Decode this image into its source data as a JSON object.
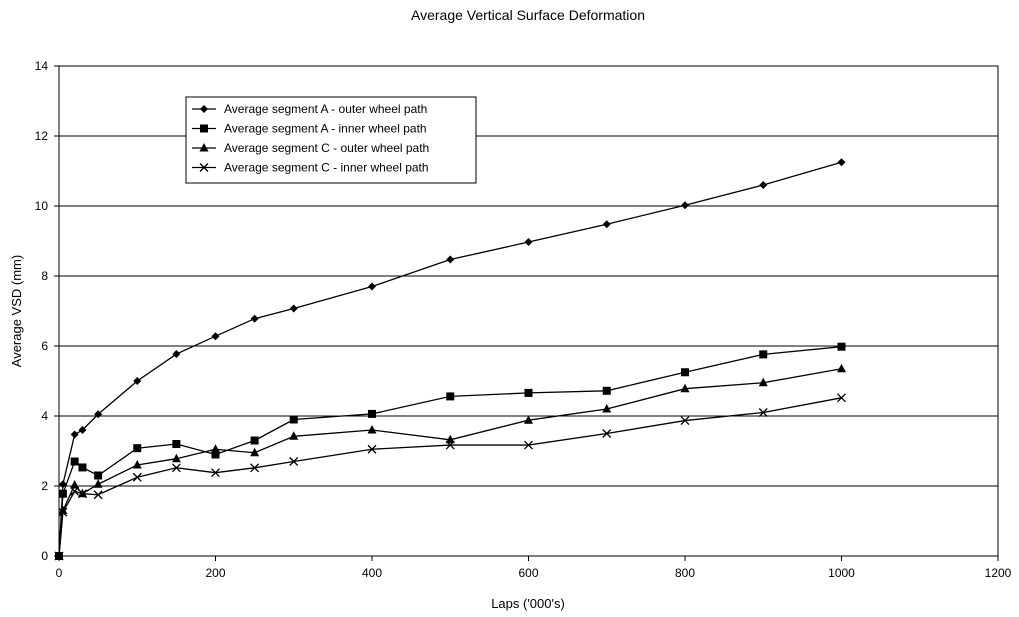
{
  "chart_data": {
    "type": "line",
    "title": "Average Vertical Surface Deformation",
    "xlabel": "Laps ('000's)",
    "ylabel": "Average VSD (mm)",
    "xlim": [
      0,
      1200
    ],
    "ylim": [
      0,
      14
    ],
    "x_ticks": [
      0,
      200,
      400,
      600,
      800,
      1000,
      1200
    ],
    "y_ticks": [
      0,
      2,
      4,
      6,
      8,
      10,
      12,
      14
    ],
    "grid": "horizontal",
    "legend_position": "top-left",
    "series": [
      {
        "name": "Average segment A - outer wheel path",
        "marker": "diamond",
        "color": "#000000",
        "x": [
          0,
          5,
          20,
          30,
          50,
          100,
          150,
          200,
          250,
          300,
          400,
          500,
          600,
          700,
          800,
          900,
          1000
        ],
        "y": [
          0,
          2.05,
          3.47,
          3.6,
          4.05,
          5.0,
          5.77,
          6.28,
          6.78,
          7.07,
          7.7,
          8.47,
          8.97,
          9.48,
          10.02,
          10.6,
          11.25
        ]
      },
      {
        "name": "Average segment A - inner wheel path",
        "marker": "square",
        "color": "#000000",
        "x": [
          0,
          5,
          20,
          30,
          50,
          100,
          150,
          200,
          250,
          300,
          400,
          500,
          600,
          700,
          800,
          900,
          1000
        ],
        "y": [
          0,
          1.78,
          2.7,
          2.53,
          2.3,
          3.08,
          3.2,
          2.9,
          3.3,
          3.9,
          4.06,
          4.56,
          4.66,
          4.72,
          5.25,
          5.76,
          5.98
        ]
      },
      {
        "name": "Average segment C - outer wheel path",
        "marker": "triangle",
        "color": "#000000",
        "x": [
          0,
          5,
          20,
          30,
          50,
          100,
          150,
          200,
          250,
          300,
          400,
          500,
          600,
          700,
          800,
          900,
          1000
        ],
        "y": [
          0,
          1.3,
          2.03,
          1.78,
          2.05,
          2.6,
          2.78,
          3.05,
          2.95,
          3.42,
          3.6,
          3.32,
          3.88,
          4.2,
          4.78,
          4.95,
          5.35
        ]
      },
      {
        "name": "Average segment C - inner wheel path",
        "marker": "x",
        "color": "#000000",
        "x": [
          0,
          5,
          20,
          30,
          50,
          100,
          150,
          200,
          250,
          300,
          400,
          500,
          600,
          700,
          800,
          900,
          1000
        ],
        "y": [
          0,
          1.25,
          1.85,
          1.78,
          1.75,
          2.25,
          2.52,
          2.38,
          2.52,
          2.7,
          3.05,
          3.17,
          3.17,
          3.5,
          3.87,
          4.1,
          4.52
        ]
      }
    ]
  }
}
